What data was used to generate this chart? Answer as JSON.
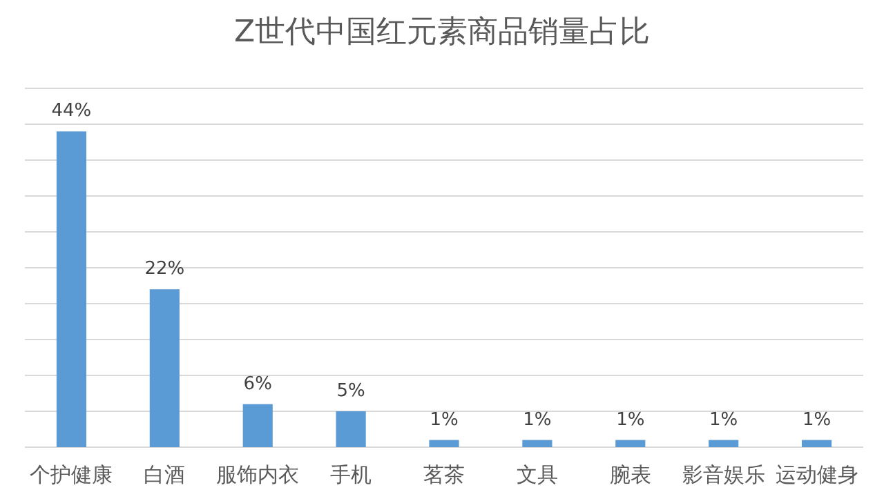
{
  "chart_data": {
    "type": "bar",
    "title": "Z世代中国红元素商品销量占比",
    "categories": [
      "个护健康",
      "白酒",
      "服饰内衣",
      "手机",
      "茗茶",
      "文具",
      "腕表",
      "影音娱乐",
      "运动健身"
    ],
    "values": [
      44,
      22,
      6,
      5,
      1,
      1,
      1,
      1,
      1
    ],
    "value_labels": [
      "44%",
      "22%",
      "6%",
      "5%",
      "1%",
      "1%",
      "1%",
      "1%",
      "1%"
    ],
    "color": "#5b9bd5",
    "ylim": [
      0,
      50
    ],
    "yticks": [
      {
        "value": 0,
        "label": null
      },
      {
        "value": 5,
        "label": null
      },
      {
        "value": 10,
        "label": null
      },
      {
        "value": 15,
        "label": null
      },
      {
        "value": 20,
        "label": null
      },
      {
        "value": 25,
        "label": null
      },
      {
        "value": 30,
        "label": null
      },
      {
        "value": 35,
        "label": null
      },
      {
        "value": 40,
        "label": null
      },
      {
        "value": 45,
        "label": null
      },
      {
        "value": 50,
        "label": null
      }
    ],
    "grid": "y",
    "tick_labels": "x"
  }
}
